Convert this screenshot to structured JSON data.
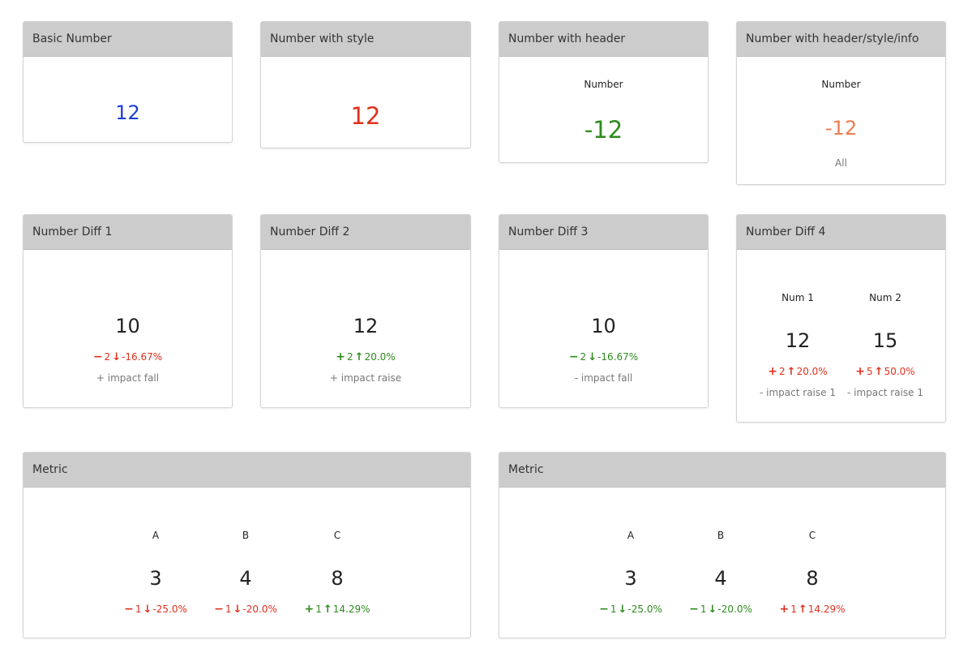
{
  "cards": {
    "basic": {
      "title": "Basic Number",
      "value": "12",
      "color": "#1a3fd6"
    },
    "styled": {
      "title": "Number with style",
      "value": "12",
      "color": "#e0301e"
    },
    "header": {
      "title": "Number with header",
      "label": "Number",
      "value": "-12",
      "color": "#2e8b1e"
    },
    "hsi": {
      "title": "Number with header/style/info",
      "label": "Number",
      "value": "-12",
      "info": "All",
      "color": "#ef7b4d"
    },
    "diff1": {
      "title": "Number Diff 1",
      "value": "10",
      "sign": "−",
      "delta": "2",
      "arrow": "↓",
      "pct": "-16.67%",
      "info": "+ impact fall"
    },
    "diff2": {
      "title": "Number Diff 2",
      "value": "12",
      "sign": "+",
      "delta": "2",
      "arrow": "↑",
      "pct": "20.0%",
      "info": "+ impact raise"
    },
    "diff3": {
      "title": "Number Diff 3",
      "value": "10",
      "sign": "−",
      "delta": "2",
      "arrow": "↓",
      "pct": "-16.67%",
      "info": "- impact fall"
    },
    "diff4": {
      "title": "Number Diff 4",
      "items": [
        {
          "label": "Num 1",
          "value": "12",
          "sign": "+",
          "delta": "2",
          "arrow": "↑",
          "pct": "20.0%",
          "info": "- impact raise 1"
        },
        {
          "label": "Num 2",
          "value": "15",
          "sign": "+",
          "delta": "5",
          "arrow": "↑",
          "pct": "50.0%",
          "info": "- impact raise 1"
        }
      ]
    },
    "metric1": {
      "title": "Metric",
      "items": [
        {
          "label": "A",
          "value": "3",
          "sign": "−",
          "delta": "1",
          "arrow": "↓",
          "pct": "-25.0%"
        },
        {
          "label": "B",
          "value": "4",
          "sign": "−",
          "delta": "1",
          "arrow": "↓",
          "pct": "-20.0%"
        },
        {
          "label": "C",
          "value": "8",
          "sign": "+",
          "delta": "1",
          "arrow": "↑",
          "pct": "14.29%"
        }
      ]
    },
    "metric2": {
      "title": "Metric",
      "items": [
        {
          "label": "A",
          "value": "3",
          "sign": "−",
          "delta": "1",
          "arrow": "↓",
          "pct": "-25.0%"
        },
        {
          "label": "B",
          "value": "4",
          "sign": "−",
          "delta": "1",
          "arrow": "↓",
          "pct": "-20.0%"
        },
        {
          "label": "C",
          "value": "8",
          "sign": "+",
          "delta": "1",
          "arrow": "↑",
          "pct": "14.29%"
        }
      ]
    }
  }
}
